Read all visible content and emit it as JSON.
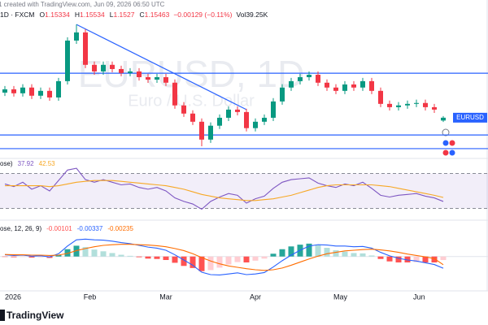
{
  "header": {
    "caption": "1 created with TradingView.com, Jun 09, 2026 06:50 UTC",
    "symbol": "1D · FXCM",
    "ohlc_labels": [
      "O",
      "H",
      "L",
      "C"
    ],
    "change": "−0.00129 (−0.11%)",
    "volume": "Vol39.25K"
  },
  "watermark": {
    "symbol": "EURUSD, 1D",
    "name": "Euro / U.S. Dollar"
  },
  "logo": "TradingView",
  "chart_data": [
    {
      "type": "candlestick",
      "up_color": "#089981",
      "down_color": "#f23645",
      "ylim": [
        1.138,
        1.208
      ],
      "candles": [
        [
          1.166,
          1.169,
          1.1645,
          1.1675
        ],
        [
          1.1675,
          1.169,
          1.1642,
          1.1657
        ],
        [
          1.1657,
          1.1698,
          1.1642,
          1.1683
        ],
        [
          1.1683,
          1.1698,
          1.1631,
          1.1646
        ],
        [
          1.1646,
          1.1683,
          1.1631,
          1.1668
        ],
        [
          1.1668,
          1.1683,
          1.1623,
          1.1638
        ],
        [
          1.1638,
          1.1727,
          1.1623,
          1.1712
        ],
        [
          1.1712,
          1.1911,
          1.1697,
          1.1896
        ],
        [
          1.1896,
          1.1969,
          1.1881,
          1.1933
        ],
        [
          1.1933,
          1.1948,
          1.1771,
          1.1786
        ],
        [
          1.1786,
          1.1801,
          1.1741,
          1.1756
        ],
        [
          1.1756,
          1.1801,
          1.1741,
          1.1786
        ],
        [
          1.1786,
          1.1801,
          1.1752,
          1.1767
        ],
        [
          1.1767,
          1.1782,
          1.1734,
          1.1749
        ],
        [
          1.1749,
          1.1771,
          1.1734,
          1.1756
        ],
        [
          1.1756,
          1.1771,
          1.1715,
          1.173
        ],
        [
          1.173,
          1.1745,
          1.1704,
          1.1719
        ],
        [
          1.1719,
          1.1745,
          1.1704,
          1.173
        ],
        [
          1.173,
          1.1745,
          1.169,
          1.1705
        ],
        [
          1.1705,
          1.172,
          1.1587,
          1.1602
        ],
        [
          1.1602,
          1.1617,
          1.155,
          1.1565
        ],
        [
          1.1565,
          1.158,
          1.1513,
          1.1528
        ],
        [
          1.1528,
          1.1543,
          1.1417,
          1.1447
        ],
        [
          1.1447,
          1.1525,
          1.1432,
          1.151
        ],
        [
          1.151,
          1.1561,
          1.1495,
          1.1546
        ],
        [
          1.1546,
          1.1598,
          1.1531,
          1.1583
        ],
        [
          1.1583,
          1.1598,
          1.1557,
          1.1572
        ],
        [
          1.1572,
          1.1587,
          1.1484,
          1.1499
        ],
        [
          1.1499,
          1.1543,
          1.1484,
          1.1528
        ],
        [
          1.1528,
          1.1561,
          1.1513,
          1.1546
        ],
        [
          1.1546,
          1.1635,
          1.1531,
          1.162
        ],
        [
          1.162,
          1.1698,
          1.1605,
          1.1683
        ],
        [
          1.1683,
          1.1727,
          1.1668,
          1.1712
        ],
        [
          1.1712,
          1.1745,
          1.1697,
          1.173
        ],
        [
          1.173,
          1.1756,
          1.1715,
          1.1741
        ],
        [
          1.1741,
          1.1756,
          1.169,
          1.1705
        ],
        [
          1.1705,
          1.172,
          1.1668,
          1.1683
        ],
        [
          1.1683,
          1.1698,
          1.1653,
          1.1668
        ],
        [
          1.1668,
          1.1712,
          1.1653,
          1.1697
        ],
        [
          1.1697,
          1.1712,
          1.1668,
          1.1683
        ],
        [
          1.1683,
          1.1727,
          1.1668,
          1.1712
        ],
        [
          1.1712,
          1.1727,
          1.1653,
          1.1668
        ],
        [
          1.1668,
          1.1683,
          1.1594,
          1.1609
        ],
        [
          1.1609,
          1.1624,
          1.1579,
          1.1594
        ],
        [
          1.1594,
          1.1617,
          1.1579,
          1.1602
        ],
        [
          1.1602,
          1.1624,
          1.1587,
          1.1609
        ],
        [
          1.1609,
          1.1628,
          1.1594,
          1.1613
        ],
        [
          1.1613,
          1.1628,
          1.1579,
          1.1594
        ],
        [
          1.1594,
          1.1609,
          1.1568,
          1.1583
        ],
        [
          1.15334,
          1.15534,
          1.1527,
          1.15463
        ]
      ],
      "hlines": [
        1.1748,
        1.1468,
        1.1406
      ],
      "hline_color": "#2962ff",
      "trendline": {
        "x": [
          8,
          27
        ],
        "y": [
          1.1969,
          1.1583
        ]
      },
      "price_label": "EURUSD",
      "xticks": [
        {
          "value": 0,
          "label": "2026"
        },
        {
          "value": 9.5,
          "label": "Feb"
        },
        {
          "value": 18,
          "label": "Mar"
        },
        {
          "value": 28,
          "label": "Apr"
        },
        {
          "value": 37.5,
          "label": "May"
        },
        {
          "value": 46.3,
          "label": "Jun"
        }
      ]
    },
    {
      "type": "line",
      "title": "ose)",
      "ylim": [
        22,
        78
      ],
      "band": [
        30,
        70
      ],
      "band_color": "#7e57c2",
      "series": [
        {
          "color": "#7e57c2",
          "values": [
            58,
            55,
            60,
            52,
            56,
            50,
            62,
            74,
            76,
            63,
            60,
            63,
            60,
            57,
            58,
            54,
            52,
            54,
            50,
            42,
            38,
            35,
            29,
            38,
            43,
            47,
            45,
            36,
            41,
            44,
            53,
            60,
            63,
            64,
            65,
            59,
            56,
            54,
            58,
            56,
            60,
            53,
            45,
            43,
            45,
            46,
            47,
            44,
            42,
            37.92
          ]
        },
        {
          "color": "#f7a825",
          "values": [
            56,
            56,
            56,
            56,
            56,
            55,
            56,
            58,
            60,
            61,
            62,
            62,
            62,
            61,
            60,
            59,
            58,
            57,
            56,
            54,
            52,
            49,
            46,
            44,
            42,
            41,
            40,
            39,
            39,
            40,
            41,
            43,
            45,
            48,
            51,
            54,
            56,
            57,
            57,
            57,
            57,
            57,
            56,
            55,
            53,
            51,
            49,
            47,
            45,
            42.53
          ]
        }
      ]
    },
    {
      "type": "macd",
      "title": "ose, 12, 26, 9)",
      "ylim": [
        -0.008,
        0.006
      ],
      "histogram_colors": [
        "#26a69a",
        "#b2dfdb",
        "#ff5252",
        "#ffcdd2"
      ],
      "histogram": [
        -0.0001,
        -0.0002,
        -0.0001,
        -0.0003,
        -0.0002,
        -0.0004,
        0.0004,
        0.0021,
        0.0031,
        0.0027,
        0.002,
        0.0015,
        0.001,
        0.0005,
        0.0002,
        -0.0002,
        -0.0006,
        -0.0007,
        -0.001,
        -0.0018,
        -0.0027,
        -0.0033,
        -0.0042,
        -0.0039,
        -0.0032,
        -0.0023,
        -0.0016,
        -0.0017,
        -0.0012,
        -0.0006,
        0.0008,
        0.0021,
        0.0029,
        0.0034,
        0.0037,
        0.0033,
        0.0025,
        0.0018,
        0.0014,
        0.001,
        0.0009,
        0.0003,
        -0.0007,
        -0.0014,
        -0.0017,
        -0.0017,
        -0.0016,
        -0.0017,
        -0.0017,
        -0.00101
      ],
      "series": [
        {
          "color": "#2962ff",
          "values": [
            0.0005,
            0.0003,
            0.0004,
            0.0001,
            0.0002,
            -0.0001,
            0.0008,
            0.003,
            0.0048,
            0.005,
            0.0048,
            0.0047,
            0.0044,
            0.004,
            0.0037,
            0.0032,
            0.0027,
            0.0024,
            0.0018,
            0.0005,
            -0.001,
            -0.0025,
            -0.0045,
            -0.0052,
            -0.0053,
            -0.005,
            -0.0047,
            -0.0052,
            -0.005,
            -0.0046,
            -0.003,
            -0.0012,
            0.0004,
            0.0018,
            0.003,
            0.0034,
            0.0033,
            0.003,
            0.003,
            0.0028,
            0.0029,
            0.0024,
            0.0012,
            0.0002,
            -0.0005,
            -0.001,
            -0.0013,
            -0.0018,
            -0.0023,
            -0.00337
          ]
        },
        {
          "color": "#ff6d00",
          "values": [
            0.0006,
            0.0005,
            0.0005,
            0.0004,
            0.0004,
            0.0003,
            0.0004,
            0.0009,
            0.0017,
            0.0023,
            0.0028,
            0.0032,
            0.0034,
            0.0035,
            0.0035,
            0.0034,
            0.0033,
            0.0031,
            0.0028,
            0.0023,
            0.0017,
            0.0008,
            -0.0003,
            -0.0013,
            -0.0021,
            -0.0027,
            -0.0031,
            -0.0035,
            -0.0038,
            -0.004,
            -0.0038,
            -0.0033,
            -0.0025,
            -0.0016,
            -0.0007,
            0.0001,
            0.0008,
            0.0012,
            0.0016,
            0.0018,
            0.002,
            0.0021,
            0.0019,
            0.0016,
            0.0012,
            0.0007,
            0.0003,
            -0.0001,
            -0.0006,
            -0.00235
          ]
        }
      ]
    }
  ]
}
